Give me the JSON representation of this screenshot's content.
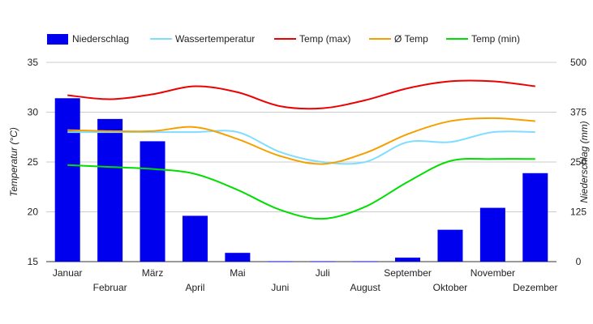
{
  "chart_data": {
    "type": "bar+line",
    "legend_position": "top",
    "grid": true,
    "categories": [
      "Januar",
      "Februar",
      "März",
      "April",
      "Mai",
      "Juni",
      "Juli",
      "August",
      "September",
      "Oktober",
      "November",
      "Dezember"
    ],
    "y_left": {
      "label": "Temperatur (°C)",
      "range": [
        15,
        35
      ],
      "ticks": [
        15,
        20,
        25,
        30,
        35
      ]
    },
    "y_right": {
      "label": "Niederschlag (mm)",
      "range": [
        0,
        500
      ],
      "ticks": [
        0,
        125,
        250,
        375,
        500
      ]
    },
    "bars": {
      "name": "Niederschlag",
      "axis": "right",
      "color": "#0000ee",
      "values": [
        410,
        358,
        302,
        115,
        22,
        1,
        1,
        1,
        10,
        80,
        135,
        222
      ]
    },
    "series": [
      {
        "name": "Wassertemperatur",
        "axis": "left",
        "color": "#80ddff",
        "values": [
          28.0,
          28.0,
          28.0,
          28.0,
          28.0,
          26.0,
          25.0,
          25.0,
          27.0,
          27.0,
          28.0,
          28.0
        ]
      },
      {
        "name": "Temp (max)",
        "axis": "left",
        "color": "#ee0000",
        "values": [
          31.7,
          31.3,
          31.8,
          32.6,
          32.0,
          30.6,
          30.4,
          31.2,
          32.4,
          33.1,
          33.1,
          32.6
        ]
      },
      {
        "name": "Ø Temp",
        "axis": "left",
        "color": "#f5a000",
        "values": [
          28.2,
          28.1,
          28.1,
          28.5,
          27.3,
          25.6,
          24.8,
          25.9,
          27.8,
          29.1,
          29.4,
          29.1
        ]
      },
      {
        "name": "Temp (min)",
        "axis": "left",
        "color": "#00dd00",
        "values": [
          24.7,
          24.5,
          24.3,
          23.8,
          22.2,
          20.2,
          19.3,
          20.5,
          23.0,
          25.1,
          25.3,
          25.3
        ]
      }
    ]
  }
}
